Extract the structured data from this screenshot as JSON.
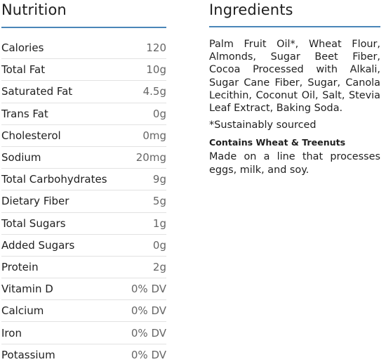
{
  "nutrition": {
    "title": "Nutrition",
    "rows": [
      {
        "name": "Calories",
        "value": "120"
      },
      {
        "name": "Total Fat",
        "value": "10g"
      },
      {
        "name": "Saturated Fat",
        "value": "4.5g"
      },
      {
        "name": "Trans Fat",
        "value": "0g"
      },
      {
        "name": "Cholesterol",
        "value": "0mg"
      },
      {
        "name": "Sodium",
        "value": "20mg"
      },
      {
        "name": "Total Carbohydrates",
        "value": "9g"
      },
      {
        "name": "Dietary Fiber",
        "value": "5g"
      },
      {
        "name": "Total Sugars",
        "value": "1g"
      },
      {
        "name": "Added Sugars",
        "value": "0g"
      },
      {
        "name": "Protein",
        "value": "2g"
      },
      {
        "name": "Vitamin D",
        "value": "0% DV"
      },
      {
        "name": "Calcium",
        "value": "0% DV"
      },
      {
        "name": "Iron",
        "value": "0% DV"
      },
      {
        "name": "Potassium",
        "value": "0% DV"
      }
    ]
  },
  "ingredients": {
    "title": "Ingredients",
    "text": "Palm Fruit Oil*, Wheat Flour, Almonds, Sugar Beet Fiber, Cocoa Processed with Alkali, Sugar Cane Fiber, Sugar, Canola Lecithin, Coconut Oil, Salt, Stevia Leaf Extract, Baking Soda.",
    "note": "*Sustainably sourced",
    "allergen_title": "Contains Wheat & Treenuts",
    "allergen_text": "Made on a line that processes eggs, milk, and soy."
  },
  "colors": {
    "rule": "#4a86b8",
    "divider": "#e2e2e2",
    "value_text": "#666666"
  }
}
